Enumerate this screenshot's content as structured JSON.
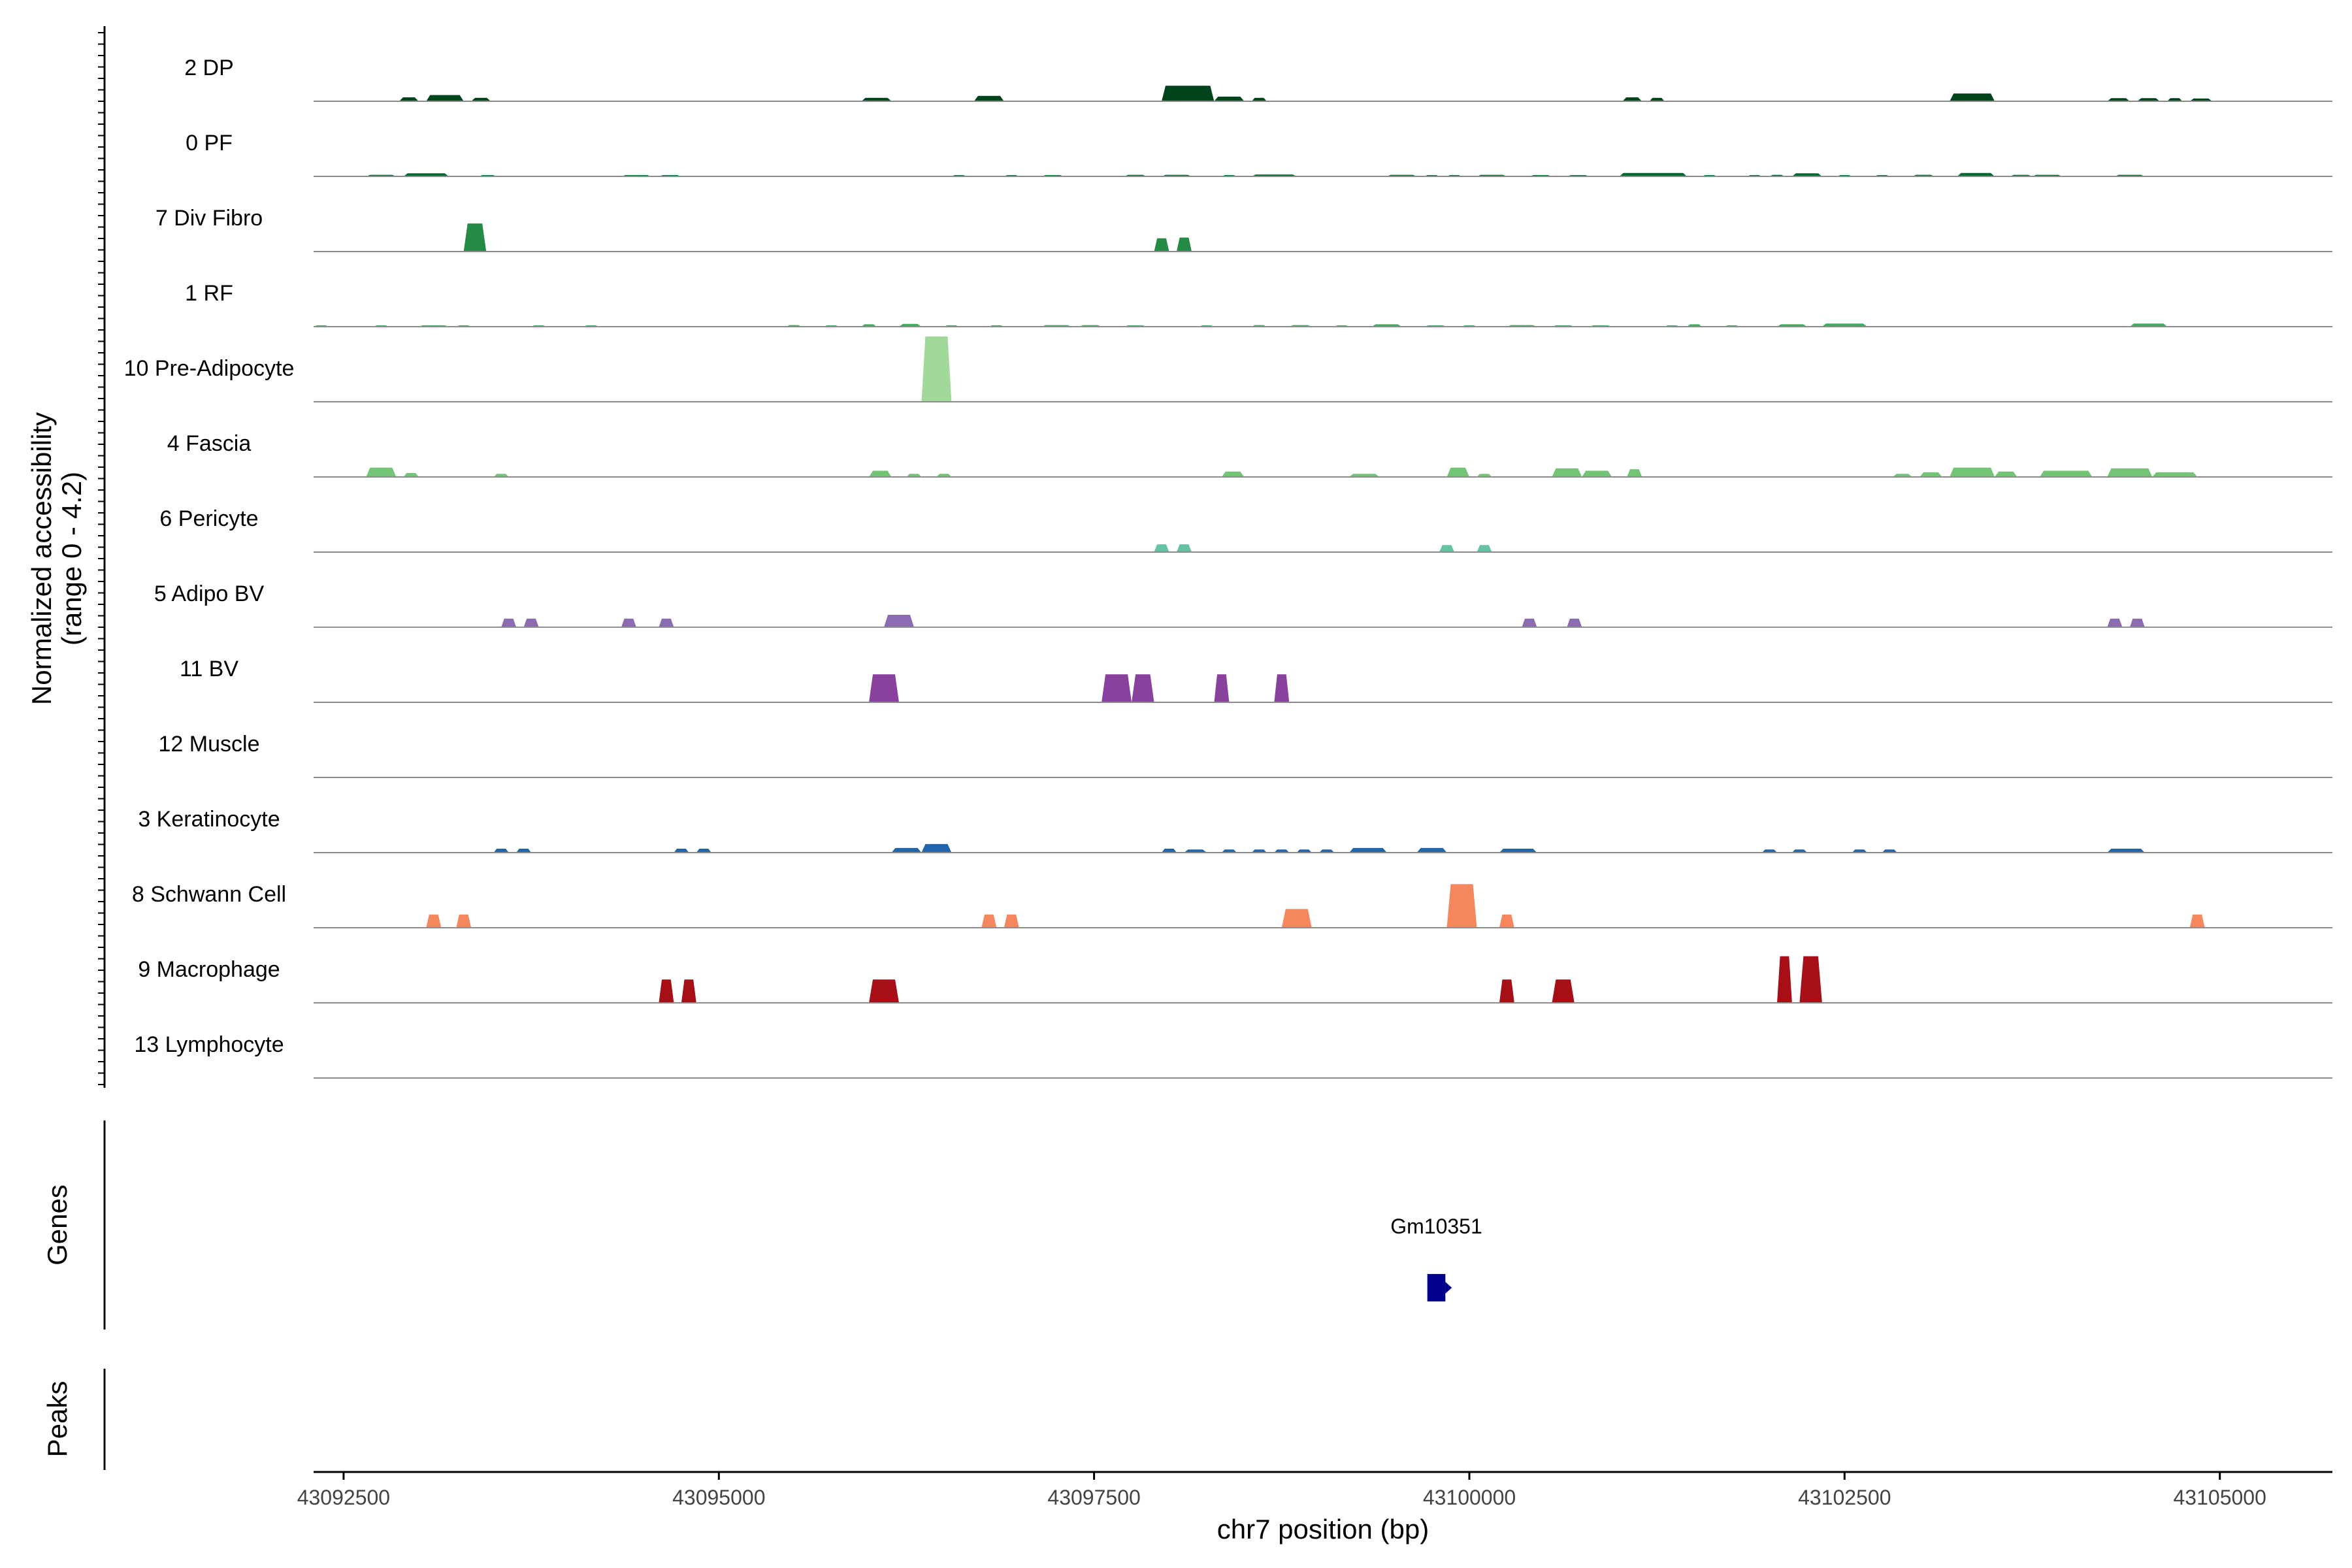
{
  "chart_data": {
    "type": "area",
    "title": "",
    "chromosome": "chr7",
    "xlabel": "chr7 position (bp)",
    "ylabel": [
      "Normalized accessibility",
      "(range 0 - 4.2)"
    ],
    "yrange": [
      0,
      4.2
    ],
    "xlim": [
      43092300,
      43105750
    ],
    "xticks": [
      43092500,
      43095000,
      43097500,
      43100000,
      43102500,
      43105000
    ],
    "xtick_labels": [
      "43092500",
      "43095000",
      "43097500",
      "43100000",
      "43102500",
      "43105000"
    ],
    "track_labels": {
      "genes": "Genes",
      "peaks": "Peaks"
    },
    "genes": [
      {
        "name": "Gm10351",
        "start": 43099720,
        "end": 43099840,
        "color": "#00008B"
      }
    ],
    "peaks": [],
    "tracks": [
      {
        "name": "2 DP",
        "color": "#00441B",
        "peaks": [
          [
            43092870,
            43093000,
            0.25
          ],
          [
            43093050,
            43093300,
            0.4
          ],
          [
            43093350,
            43093480,
            0.22
          ],
          [
            43095950,
            43096150,
            0.22
          ],
          [
            43096700,
            43096900,
            0.35
          ],
          [
            43097950,
            43098300,
            1.0
          ],
          [
            43098300,
            43098500,
            0.3
          ],
          [
            43098550,
            43098650,
            0.22
          ],
          [
            43101020,
            43101150,
            0.25
          ],
          [
            43101200,
            43101300,
            0.22
          ],
          [
            43103200,
            43103500,
            0.5
          ],
          [
            43104250,
            43104400,
            0.2
          ],
          [
            43104450,
            43104600,
            0.2
          ],
          [
            43104650,
            43104750,
            0.2
          ],
          [
            43104800,
            43104950,
            0.18
          ]
        ]
      },
      {
        "name": "0 PF",
        "color": "#00692F",
        "peaks": [
          [
            43092650,
            43092850,
            0.1
          ],
          [
            43092900,
            43093200,
            0.2
          ],
          [
            43093400,
            43093520,
            0.08
          ],
          [
            43094350,
            43094550,
            0.08
          ],
          [
            43094600,
            43094750,
            0.08
          ],
          [
            43096550,
            43096650,
            0.07
          ],
          [
            43096900,
            43097000,
            0.07
          ],
          [
            43097150,
            43097300,
            0.07
          ],
          [
            43097700,
            43097850,
            0.1
          ],
          [
            43097950,
            43098150,
            0.1
          ],
          [
            43098350,
            43098450,
            0.08
          ],
          [
            43098550,
            43098850,
            0.12
          ],
          [
            43099450,
            43099650,
            0.1
          ],
          [
            43099700,
            43099800,
            0.08
          ],
          [
            43099850,
            43099950,
            0.08
          ],
          [
            43100050,
            43100250,
            0.1
          ],
          [
            43100400,
            43100550,
            0.08
          ],
          [
            43100650,
            43100800,
            0.08
          ],
          [
            43101000,
            43101450,
            0.22
          ],
          [
            43101550,
            43101650,
            0.08
          ],
          [
            43101850,
            43101950,
            0.08
          ],
          [
            43102000,
            43102100,
            0.1
          ],
          [
            43102150,
            43102350,
            0.2
          ],
          [
            43102450,
            43102550,
            0.08
          ],
          [
            43102700,
            43102800,
            0.08
          ],
          [
            43102950,
            43103100,
            0.1
          ],
          [
            43103250,
            43103500,
            0.22
          ],
          [
            43103600,
            43103750,
            0.1
          ],
          [
            43103750,
            43103950,
            0.1
          ],
          [
            43104300,
            43104500,
            0.1
          ]
        ]
      },
      {
        "name": "7 Div Fibro",
        "color": "#238B45",
        "peaks": [
          [
            43093300,
            43093450,
            1.8
          ],
          [
            43097900,
            43098000,
            0.85
          ],
          [
            43098050,
            43098150,
            0.9
          ]
        ]
      },
      {
        "name": "1 RF",
        "color": "#41AB5D",
        "peaks": [
          [
            43092300,
            43092400,
            0.05
          ],
          [
            43092700,
            43092800,
            0.05
          ],
          [
            43093000,
            43093200,
            0.05
          ],
          [
            43093250,
            43093350,
            0.05
          ],
          [
            43093750,
            43093850,
            0.05
          ],
          [
            43094100,
            43094200,
            0.05
          ],
          [
            43095450,
            43095550,
            0.1
          ],
          [
            43095700,
            43095800,
            0.08
          ],
          [
            43095950,
            43096050,
            0.15
          ],
          [
            43096200,
            43096350,
            0.18
          ],
          [
            43096500,
            43096600,
            0.08
          ],
          [
            43096800,
            43096900,
            0.08
          ],
          [
            43097150,
            43097350,
            0.1
          ],
          [
            43097400,
            43097550,
            0.1
          ],
          [
            43097700,
            43097850,
            0.08
          ],
          [
            43098200,
            43098300,
            0.06
          ],
          [
            43098550,
            43098650,
            0.1
          ],
          [
            43098800,
            43098950,
            0.1
          ],
          [
            43099100,
            43099200,
            0.08
          ],
          [
            43099350,
            43099550,
            0.15
          ],
          [
            43099700,
            43099850,
            0.08
          ],
          [
            43099950,
            43100050,
            0.08
          ],
          [
            43100250,
            43100450,
            0.1
          ],
          [
            43100550,
            43100700,
            0.08
          ],
          [
            43100800,
            43100950,
            0.08
          ],
          [
            43101300,
            43101400,
            0.08
          ],
          [
            43101450,
            43101550,
            0.15
          ],
          [
            43101700,
            43101800,
            0.08
          ],
          [
            43102050,
            43102250,
            0.15
          ],
          [
            43102350,
            43102650,
            0.2
          ],
          [
            43104400,
            43104650,
            0.2
          ]
        ]
      },
      {
        "name": "10 Pre-Adipocyte",
        "color": "#A1D99B",
        "peaks": [
          [
            43096350,
            43096550,
            4.2
          ]
        ]
      },
      {
        "name": "4 Fascia",
        "color": "#74C476",
        "peaks": [
          [
            43092650,
            43092850,
            0.6
          ],
          [
            43092900,
            43093000,
            0.25
          ],
          [
            43093500,
            43093600,
            0.2
          ],
          [
            43096000,
            43096150,
            0.4
          ],
          [
            43096250,
            43096350,
            0.2
          ],
          [
            43096450,
            43096550,
            0.2
          ],
          [
            43098350,
            43098500,
            0.35
          ],
          [
            43099200,
            43099400,
            0.2
          ],
          [
            43099850,
            43100000,
            0.6
          ],
          [
            43100050,
            43100150,
            0.2
          ],
          [
            43100550,
            43100750,
            0.55
          ],
          [
            43100750,
            43100950,
            0.4
          ],
          [
            43101050,
            43101150,
            0.5
          ],
          [
            43102820,
            43102950,
            0.2
          ],
          [
            43103000,
            43103150,
            0.3
          ],
          [
            43103200,
            43103500,
            0.6
          ],
          [
            43103500,
            43103650,
            0.35
          ],
          [
            43103800,
            43104150,
            0.4
          ],
          [
            43104250,
            43104550,
            0.55
          ],
          [
            43104550,
            43104850,
            0.3
          ]
        ]
      },
      {
        "name": "6 Pericyte",
        "color": "#66C2A4",
        "peaks": [
          [
            43097900,
            43098000,
            0.5
          ],
          [
            43098050,
            43098150,
            0.5
          ],
          [
            43099800,
            43099900,
            0.45
          ],
          [
            43100050,
            43100150,
            0.45
          ]
        ]
      },
      {
        "name": "5 Adipo BV",
        "color": "#8C6BB1",
        "peaks": [
          [
            43093550,
            43093650,
            0.55
          ],
          [
            43093700,
            43093800,
            0.55
          ],
          [
            43094350,
            43094450,
            0.55
          ],
          [
            43094600,
            43094700,
            0.55
          ],
          [
            43096100,
            43096300,
            0.8
          ],
          [
            43100350,
            43100450,
            0.55
          ],
          [
            43100650,
            43100750,
            0.55
          ],
          [
            43104250,
            43104350,
            0.55
          ],
          [
            43104400,
            43104500,
            0.55
          ]
        ]
      },
      {
        "name": "11 BV",
        "color": "#88419D",
        "peaks": [
          [
            43096000,
            43096200,
            1.8
          ],
          [
            43097550,
            43097750,
            1.8
          ],
          [
            43097750,
            43097900,
            1.8
          ],
          [
            43098300,
            43098400,
            1.8
          ],
          [
            43098700,
            43098800,
            1.8
          ]
        ]
      },
      {
        "name": "12 Muscle",
        "color": "#8C96C6",
        "peaks": []
      },
      {
        "name": "3 Keratinocyte",
        "color": "#2166AC",
        "peaks": [
          [
            43093500,
            43093600,
            0.25
          ],
          [
            43093650,
            43093750,
            0.25
          ],
          [
            43094700,
            43094800,
            0.25
          ],
          [
            43094850,
            43094950,
            0.25
          ],
          [
            43096150,
            43096350,
            0.3
          ],
          [
            43096350,
            43096550,
            0.55
          ],
          [
            43097950,
            43098050,
            0.25
          ],
          [
            43098100,
            43098250,
            0.2
          ],
          [
            43098350,
            43098450,
            0.2
          ],
          [
            43098550,
            43098650,
            0.2
          ],
          [
            43098700,
            43098800,
            0.2
          ],
          [
            43098850,
            43098950,
            0.2
          ],
          [
            43099000,
            43099100,
            0.2
          ],
          [
            43099200,
            43099450,
            0.3
          ],
          [
            43099650,
            43099850,
            0.3
          ],
          [
            43100200,
            43100450,
            0.25
          ],
          [
            43101950,
            43102050,
            0.2
          ],
          [
            43102150,
            43102250,
            0.2
          ],
          [
            43102550,
            43102650,
            0.2
          ],
          [
            43102750,
            43102850,
            0.2
          ],
          [
            43104250,
            43104500,
            0.25
          ]
        ]
      },
      {
        "name": "8 Schwann Cell",
        "color": "#F4875E",
        "peaks": [
          [
            43093050,
            43093150,
            0.85
          ],
          [
            43093250,
            43093350,
            0.85
          ],
          [
            43096750,
            43096850,
            0.85
          ],
          [
            43096900,
            43097000,
            0.85
          ],
          [
            43098750,
            43098950,
            1.2
          ],
          [
            43099850,
            43100050,
            2.8
          ],
          [
            43100200,
            43100300,
            0.85
          ],
          [
            43104800,
            43104900,
            0.85
          ]
        ]
      },
      {
        "name": "9 Macrophage",
        "color": "#A50F15",
        "peaks": [
          [
            43094600,
            43094700,
            1.5
          ],
          [
            43094750,
            43094850,
            1.5
          ],
          [
            43096000,
            43096200,
            1.5
          ],
          [
            43100200,
            43100300,
            1.5
          ],
          [
            43100550,
            43100700,
            1.5
          ],
          [
            43102050,
            43102150,
            3.0
          ],
          [
            43102200,
            43102350,
            3.0
          ]
        ]
      },
      {
        "name": "13 Lymphocyte",
        "color": "#CB181D",
        "peaks": []
      }
    ]
  }
}
